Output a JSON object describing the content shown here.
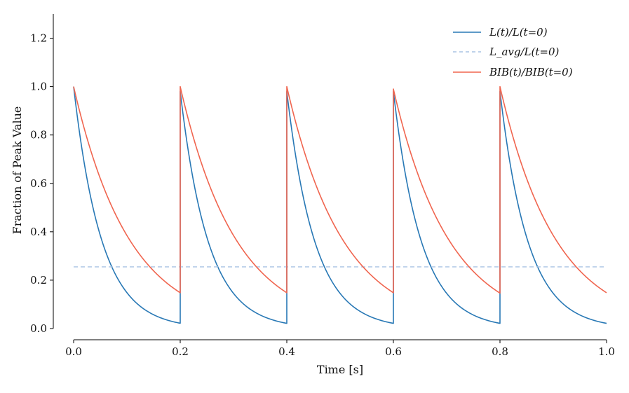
{
  "chart_data": {
    "type": "line",
    "title": "",
    "xlabel": "Time [s]",
    "ylabel": "Fraction of Peak Value",
    "xlim": [
      0.0,
      1.0
    ],
    "ylim": [
      0.0,
      1.3
    ],
    "xticks": [
      0.0,
      0.2,
      0.4,
      0.6,
      0.8,
      1.0
    ],
    "xtick_labels": [
      "0.0",
      "0.2",
      "0.4",
      "0.6",
      "0.8",
      "1.0"
    ],
    "yticks": [
      0.0,
      0.2,
      0.4,
      0.6,
      0.8,
      1.0,
      1.2
    ],
    "ytick_labels": [
      "0.0",
      "0.2",
      "0.4",
      "0.6",
      "0.8",
      "1.0",
      "1.2"
    ],
    "grid": false,
    "legend_position": "top-right",
    "period_s": 0.2,
    "series": [
      {
        "name": "L(t)/L(t=0)",
        "color": "#2878b5",
        "style": "solid",
        "model": "periodic exponential decay",
        "peak": 1.0,
        "value_at_period_end": 0.022,
        "pulse_peaks": [
          {
            "t": 0.0,
            "value": 1.0
          },
          {
            "t": 0.2,
            "value": 0.98
          },
          {
            "t": 0.4,
            "value": 0.98
          },
          {
            "t": 0.6,
            "value": 0.98
          },
          {
            "t": 0.8,
            "value": 0.98
          }
        ]
      },
      {
        "name": "L_avg/L(t=0)",
        "color": "#a9c4e4",
        "style": "dashed",
        "model": "constant",
        "value": 0.255
      },
      {
        "name": "BIB(t)/BIB(t=0)",
        "color": "#f0654f",
        "style": "solid",
        "model": "periodic exponential decay",
        "peak": 1.0,
        "value_at_period_end": 0.148,
        "pulse_peaks": [
          {
            "t": 0.0,
            "value": 1.0
          },
          {
            "t": 0.2,
            "value": 1.0
          },
          {
            "t": 0.4,
            "value": 1.0
          },
          {
            "t": 0.6,
            "value": 0.99
          },
          {
            "t": 0.8,
            "value": 1.0
          }
        ]
      }
    ]
  }
}
